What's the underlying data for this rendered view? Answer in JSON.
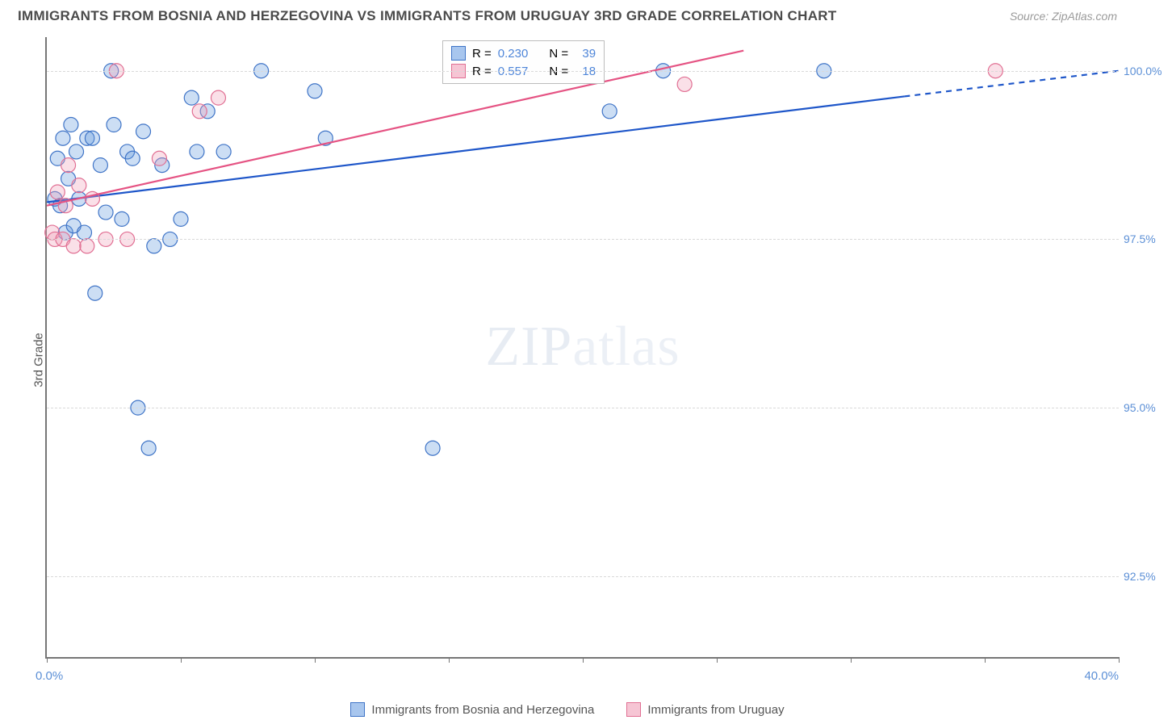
{
  "header": {
    "title": "IMMIGRANTS FROM BOSNIA AND HERZEGOVINA VS IMMIGRANTS FROM URUGUAY 3RD GRADE CORRELATION CHART",
    "source_label": "Source: ZipAtlas.com"
  },
  "chart": {
    "type": "scatter-with-trend",
    "ylabel": "3rd Grade",
    "xlim": [
      0,
      40
    ],
    "ylim": [
      91.3,
      100.5
    ],
    "x_ticks": [
      0,
      5,
      10,
      15,
      20,
      25,
      30,
      35,
      40
    ],
    "x_tick_labels_visible": {
      "start": "0.0%",
      "end": "40.0%"
    },
    "y_gridlines": [
      92.5,
      95.0,
      97.5,
      100.0
    ],
    "y_tick_labels": [
      "92.5%",
      "95.0%",
      "97.5%",
      "100.0%"
    ],
    "background_color": "#ffffff",
    "grid_color": "#d9d9d9",
    "axis_color": "#767676",
    "axis_label_color": "#5b8fd6",
    "marker_radius": 9,
    "marker_stroke_width": 1.2,
    "marker_fill_opacity": 0.32,
    "trend_line_width": 2.2,
    "series": [
      {
        "name": "Immigrants from Bosnia and Herzegovina",
        "color": "#6097dd",
        "stroke": "#3f74c7",
        "trend_color": "#1e56c9",
        "r_value": "0.230",
        "n_value": "39",
        "trend": {
          "x1": 0,
          "y1": 98.05,
          "x2_solid": 32.0,
          "y2_solid": 99.62,
          "x2_dash": 40.0,
          "y2_dash": 100.0
        },
        "points": [
          [
            0.3,
            98.1
          ],
          [
            0.4,
            98.7
          ],
          [
            0.5,
            98.0
          ],
          [
            0.6,
            99.0
          ],
          [
            0.7,
            97.6
          ],
          [
            0.8,
            98.4
          ],
          [
            0.9,
            99.2
          ],
          [
            1.0,
            97.7
          ],
          [
            1.1,
            98.8
          ],
          [
            1.2,
            98.1
          ],
          [
            1.4,
            97.6
          ],
          [
            1.5,
            99.0
          ],
          [
            1.7,
            99.0
          ],
          [
            1.8,
            96.7
          ],
          [
            2.0,
            98.6
          ],
          [
            2.2,
            97.9
          ],
          [
            2.4,
            100.0
          ],
          [
            2.5,
            99.2
          ],
          [
            2.8,
            97.8
          ],
          [
            3.0,
            98.8
          ],
          [
            3.2,
            98.7
          ],
          [
            3.4,
            95.0
          ],
          [
            3.6,
            99.1
          ],
          [
            3.8,
            94.4
          ],
          [
            4.0,
            97.4
          ],
          [
            4.3,
            98.6
          ],
          [
            4.6,
            97.5
          ],
          [
            5.0,
            97.8
          ],
          [
            5.4,
            99.6
          ],
          [
            5.6,
            98.8
          ],
          [
            6.0,
            99.4
          ],
          [
            6.6,
            98.8
          ],
          [
            8.0,
            100.0
          ],
          [
            10.0,
            99.7
          ],
          [
            10.4,
            99.0
          ],
          [
            14.4,
            94.4
          ],
          [
            21.0,
            99.4
          ],
          [
            23.0,
            100.0
          ],
          [
            29.0,
            100.0
          ]
        ]
      },
      {
        "name": "Immigrants from Uruguay",
        "color": "#f19fb6",
        "stroke": "#e16f93",
        "trend_color": "#e55383",
        "r_value": "0.557",
        "n_value": "18",
        "trend": {
          "x1": 0,
          "y1": 98.0,
          "x2_solid": 26.0,
          "y2_solid": 100.3,
          "x2_dash": 26.0,
          "y2_dash": 100.3
        },
        "points": [
          [
            0.2,
            97.6
          ],
          [
            0.3,
            97.5
          ],
          [
            0.4,
            98.2
          ],
          [
            0.6,
            97.5
          ],
          [
            0.7,
            98.0
          ],
          [
            0.8,
            98.6
          ],
          [
            1.0,
            97.4
          ],
          [
            1.2,
            98.3
          ],
          [
            1.5,
            97.4
          ],
          [
            1.7,
            98.1
          ],
          [
            2.2,
            97.5
          ],
          [
            2.6,
            100.0
          ],
          [
            3.0,
            97.5
          ],
          [
            4.2,
            98.7
          ],
          [
            5.7,
            99.4
          ],
          [
            6.4,
            99.6
          ],
          [
            23.8,
            99.8
          ],
          [
            35.4,
            100.0
          ]
        ]
      }
    ],
    "legend_bottom": [
      {
        "label": "Immigrants from Bosnia and Herzegovina",
        "fill": "#a8c6ee",
        "stroke": "#3f74c7"
      },
      {
        "label": "Immigrants from Uruguay",
        "fill": "#f6c5d4",
        "stroke": "#e16f93"
      }
    ],
    "watermark": {
      "bold": "ZIP",
      "thin": "atlas"
    }
  },
  "stats_box": {
    "rows": [
      {
        "fill": "#a8c6ee",
        "stroke": "#3f74c7",
        "r": "0.230",
        "n": "39"
      },
      {
        "fill": "#f6c5d4",
        "stroke": "#e16f93",
        "r": "0.557",
        "n": "18"
      }
    ],
    "r_label": "R =",
    "n_label": "N ="
  }
}
